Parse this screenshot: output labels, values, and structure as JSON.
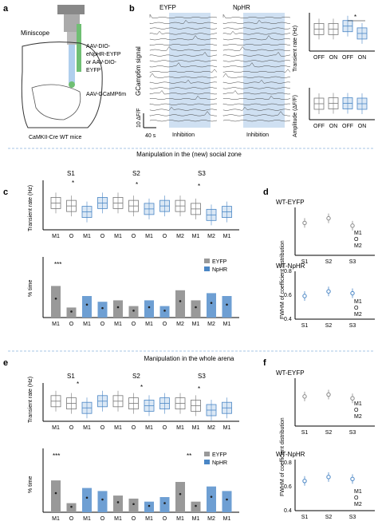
{
  "panels": {
    "a": "a",
    "b": "b",
    "c": "c",
    "d": "d",
    "e": "e",
    "f": "f"
  },
  "panel_a": {
    "miniscope": "Miniscope",
    "virus_1": "AAV-DIO-",
    "virus_2": "eNpHR-EYFP",
    "virus_3": "or AAV-DIO-",
    "virus_4": "EYFP",
    "virus_5": "AAV-GCaMP6m",
    "mouse": "CaMKII-Cre WT mice"
  },
  "panel_b": {
    "title_eyfp": "EYFP",
    "title_nphr": "NpHR",
    "ylabel_signal": "GCamp6m signal",
    "scale_y": "10 ΔF/F",
    "scale_x": "40 s",
    "inhibition": "Inhibition",
    "transient_ylabel": "Transient rate (Hz)",
    "amplitude_ylabel": "Amplitude (ΔF/F)",
    "xticks": [
      "OFF",
      "ON",
      "OFF",
      "ON"
    ],
    "star": "*",
    "colors": {
      "eyfp": "#777777",
      "nphr": "#4a86c5",
      "shade": "#cfe0f2"
    }
  },
  "divider_1": "Manipulation in the (new) social zone",
  "divider_2": "Manipulation in the whole arena",
  "panel_c": {
    "sessions": [
      "S1",
      "S2",
      "S3"
    ],
    "xticks": [
      "M1",
      "O",
      "M1",
      "O",
      "M1",
      "O",
      "M1",
      "O",
      "M2",
      "M1",
      "M2",
      "M1"
    ],
    "xticks_bottom": [
      "M1",
      "O",
      "M1",
      "O",
      "M1",
      "O",
      "M1",
      "O",
      "M2",
      "M1",
      "M2",
      "M1"
    ],
    "transient_ylabel": "Transient rate (Hz)",
    "time_ylabel": "% time",
    "legend": [
      "EYFP",
      "NpHR"
    ],
    "stars_top": "*",
    "stars_bottom": "***"
  },
  "panel_d": {
    "title_top": "WT-EYFP",
    "title_bottom": "WT-NpHR",
    "ylabel": "FWHM of coefficient  distribution",
    "xticks": [
      "S1",
      "S2",
      "S3"
    ],
    "legend": [
      "M1",
      "O",
      "M2"
    ],
    "yticks": [
      "0.4",
      "0.6",
      "0.8"
    ]
  },
  "panel_e": {
    "sessions": [
      "S1",
      "S2",
      "S3"
    ],
    "xticks": [
      "M1",
      "O",
      "M1",
      "O",
      "M1",
      "O",
      "M1",
      "O",
      "M1",
      "M1",
      "M2",
      "M1"
    ],
    "transient_ylabel": "Transient rate (Hz)",
    "time_ylabel": "% time",
    "legend": [
      "EYFP",
      "NpHR"
    ],
    "stars_top": "*",
    "stars_bottom": "***",
    "stars_bottom_2": "**"
  },
  "panel_f": {
    "title_top": "WT-EYFP",
    "title_bottom": "WT-NpHR",
    "ylabel": "FWHM of coefficient  distribution",
    "xticks": [
      "S1",
      "S2",
      "S3"
    ],
    "legend": [
      "M1",
      "O",
      "M2"
    ],
    "yticks": [
      "0.4",
      "0.6",
      "0.8"
    ]
  },
  "chart_data": [
    {
      "type": "box",
      "panel": "b-transient",
      "categories": [
        "OFF",
        "ON",
        "OFF",
        "ON"
      ],
      "values": [
        0.015,
        0.015,
        0.017,
        0.012
      ],
      "ylabel": "Transient rate (Hz)",
      "ylim": [
        0,
        0.025
      ]
    },
    {
      "type": "box",
      "panel": "b-amplitude",
      "categories": [
        "OFF",
        "ON",
        "OFF",
        "ON"
      ],
      "values": [
        4,
        4.1,
        4.1,
        4
      ],
      "ylabel": "Amplitude (ΔF/F)",
      "ylim": [
        0,
        8
      ]
    },
    {
      "type": "box",
      "panel": "c-transient",
      "categories": [
        "M1",
        "O",
        "M1",
        "O",
        "M1",
        "O",
        "M1",
        "O",
        "M2",
        "M1",
        "M2",
        "M1"
      ],
      "values": [
        0.009,
        0.008,
        0.006,
        0.009,
        0.009,
        0.008,
        0.007,
        0.008,
        0.008,
        0.007,
        0.005,
        0.006
      ],
      "ylabel": "Transient rate (Hz)",
      "ylim": [
        0,
        0.015
      ]
    },
    {
      "type": "bar",
      "panel": "c-time",
      "categories": [
        "M1",
        "O",
        "M1",
        "O",
        "M1",
        "O",
        "M1",
        "O",
        "M2",
        "M1",
        "M2",
        "M1"
      ],
      "series": [
        {
          "name": "EYFP",
          "values": [
            22,
            7,
            15,
            11,
            12,
            8,
            12,
            8,
            19,
            12,
            17,
            15
          ]
        }
      ],
      "ylabel": "% time",
      "ylim": [
        0,
        40
      ]
    },
    {
      "type": "bar",
      "panel": "e-time",
      "categories": [
        "M1",
        "O",
        "M1",
        "O",
        "M1",
        "O",
        "M1",
        "O",
        "M1",
        "M1",
        "M2",
        "M1"
      ],
      "series": [
        {
          "name": "EYFP",
          "values": [
            21,
            6,
            16,
            14,
            11,
            9,
            7,
            10,
            20,
            7,
            17,
            14
          ]
        }
      ],
      "ylabel": "% time",
      "ylim": [
        0,
        40
      ]
    }
  ]
}
